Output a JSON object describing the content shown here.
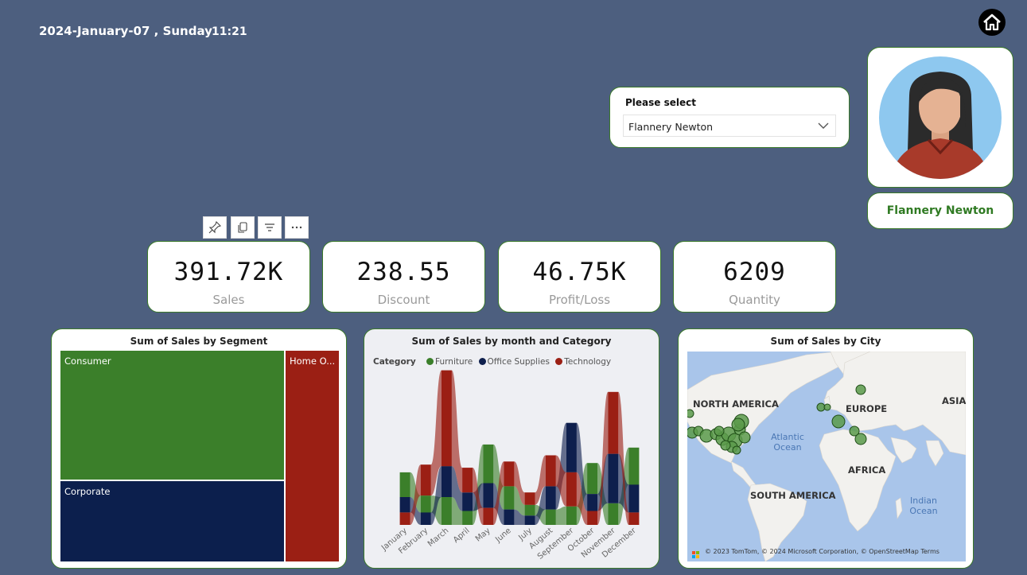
{
  "header": {
    "date": "2024-January-07 , Sunday",
    "time": "11:21"
  },
  "selector": {
    "label": "Please select",
    "value": "Flannery Newton"
  },
  "profile": {
    "name": "Flannery Newton"
  },
  "toolbar": {
    "icons": [
      "pin-icon",
      "copy-icon",
      "filter-icon",
      "more-icon"
    ]
  },
  "kpis": [
    {
      "value": "391.72K",
      "label": "Sales"
    },
    {
      "value": "238.55",
      "label": "Discount"
    },
    {
      "value": "46.75K",
      "label": "Profit/Loss"
    },
    {
      "value": "6209",
      "label": "Quantity"
    }
  ],
  "colors": {
    "background": "#4d5f7f",
    "furniture": "#3b7f2a",
    "office_supplies": "#0e1f4d",
    "technology": "#9b1f14",
    "accent_green": "#2f7a22"
  },
  "chart_data": [
    {
      "type": "treemap",
      "title": "Sum of Sales by Segment",
      "categories": [
        "Consumer",
        "Corporate",
        "Home O..."
      ],
      "values": [
        166000,
        127000,
        98720
      ]
    },
    {
      "type": "area",
      "subtype": "ribbon",
      "title": "Sum of Sales by month and Category",
      "legend_title": "Category",
      "legend_position": "top-left",
      "categories": [
        "January",
        "February",
        "March",
        "April",
        "May",
        "June",
        "July",
        "August",
        "September",
        "October",
        "November",
        "December"
      ],
      "series": [
        {
          "name": "Furniture",
          "values": [
            8000,
            5500,
            9000,
            4500,
            12500,
            7500,
            3500,
            5000,
            6000,
            10000,
            7000,
            12000
          ]
        },
        {
          "name": "Office Supplies",
          "values": [
            5000,
            4000,
            10000,
            6000,
            8000,
            5000,
            3000,
            7500,
            16000,
            5500,
            16000,
            9000
          ]
        },
        {
          "name": "Technology",
          "values": [
            4000,
            10000,
            31000,
            8000,
            5500,
            8000,
            4000,
            10000,
            11000,
            4500,
            20000,
            4000
          ]
        }
      ]
    },
    {
      "type": "map",
      "title": "Sum of Sales by City",
      "labels": [
        "NORTH AMERICA",
        "EUROPE",
        "ASIA",
        "AFRICA",
        "SOUTH AMERICA"
      ],
      "oceans": [
        "Atlantic Ocean",
        "Indian Ocean"
      ],
      "attribution": "© 2023 TomTom, © 2024 Microsoft Corporation, © OpenStreetMap  Terms"
    }
  ]
}
